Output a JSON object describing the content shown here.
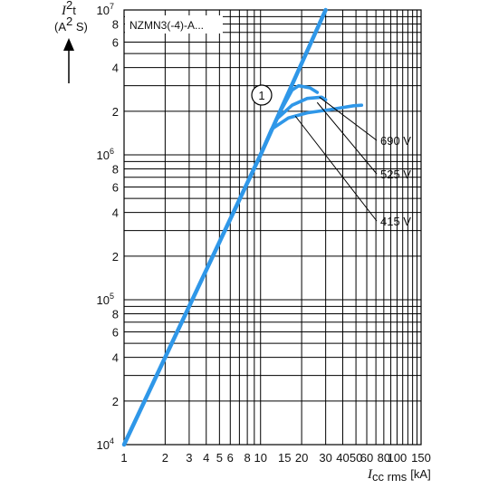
{
  "chart_data": {
    "type": "line",
    "box_label": "NZMN3(-4)-A...",
    "y_axis": {
      "symbol": "I",
      "symbol_sup": "2",
      "symbol_tail": "t",
      "unit_pre": "(A",
      "unit_sup": "2",
      "unit_post": " S)",
      "scale": "log",
      "range": [
        10000,
        10000000
      ],
      "mantissa_ticks": [
        "2",
        "4",
        "6",
        "8"
      ]
    },
    "x_axis": {
      "symbol": "I",
      "subscript": "cc rms",
      "unit": "[kA]",
      "scale": "log",
      "range": [
        1,
        150
      ],
      "ticks": [
        {
          "v": 1,
          "t": "1"
        },
        {
          "v": 2,
          "t": "2"
        },
        {
          "v": 3,
          "t": "3"
        },
        {
          "v": 4,
          "t": "4"
        },
        {
          "v": 5,
          "t": "5"
        },
        {
          "v": 6,
          "t": "6"
        },
        {
          "v": 8,
          "t": "8"
        },
        {
          "v": 10,
          "t": "10"
        },
        {
          "v": 15,
          "t": "15"
        },
        {
          "v": 20,
          "t": "20"
        },
        {
          "v": 30,
          "t": "30"
        },
        {
          "v": 40,
          "t": "40"
        },
        {
          "v": 50,
          "t": "50"
        },
        {
          "v": 60,
          "t": "60"
        },
        {
          "v": 80,
          "t": "80"
        },
        {
          "v": 100,
          "t": "100"
        },
        {
          "v": 150,
          "t": "150"
        }
      ]
    },
    "marker": "1",
    "series": [
      {
        "key": "main",
        "points": [
          [
            1,
            10000
          ],
          [
            10,
            1000000
          ],
          [
            30,
            10000000
          ]
        ]
      },
      {
        "name": "690 V",
        "points": [
          [
            10,
            1000000
          ],
          [
            14,
            2000000
          ],
          [
            17,
            2800000
          ],
          [
            19,
            3000000
          ],
          [
            23,
            2900000
          ],
          [
            26,
            2700000
          ]
        ]
      },
      {
        "name": "525 V",
        "points": [
          [
            10,
            1000000
          ],
          [
            13,
            1750000
          ],
          [
            17,
            2200000
          ],
          [
            22,
            2450000
          ],
          [
            28,
            2500000
          ],
          [
            30,
            2400000
          ]
        ]
      },
      {
        "name": "415 V",
        "points": [
          [
            10,
            1000000
          ],
          [
            12,
            1500000
          ],
          [
            16,
            1800000
          ],
          [
            22,
            1950000
          ],
          [
            32,
            2050000
          ],
          [
            48,
            2180000
          ],
          [
            55,
            2200000
          ]
        ]
      }
    ],
    "grid": true
  }
}
